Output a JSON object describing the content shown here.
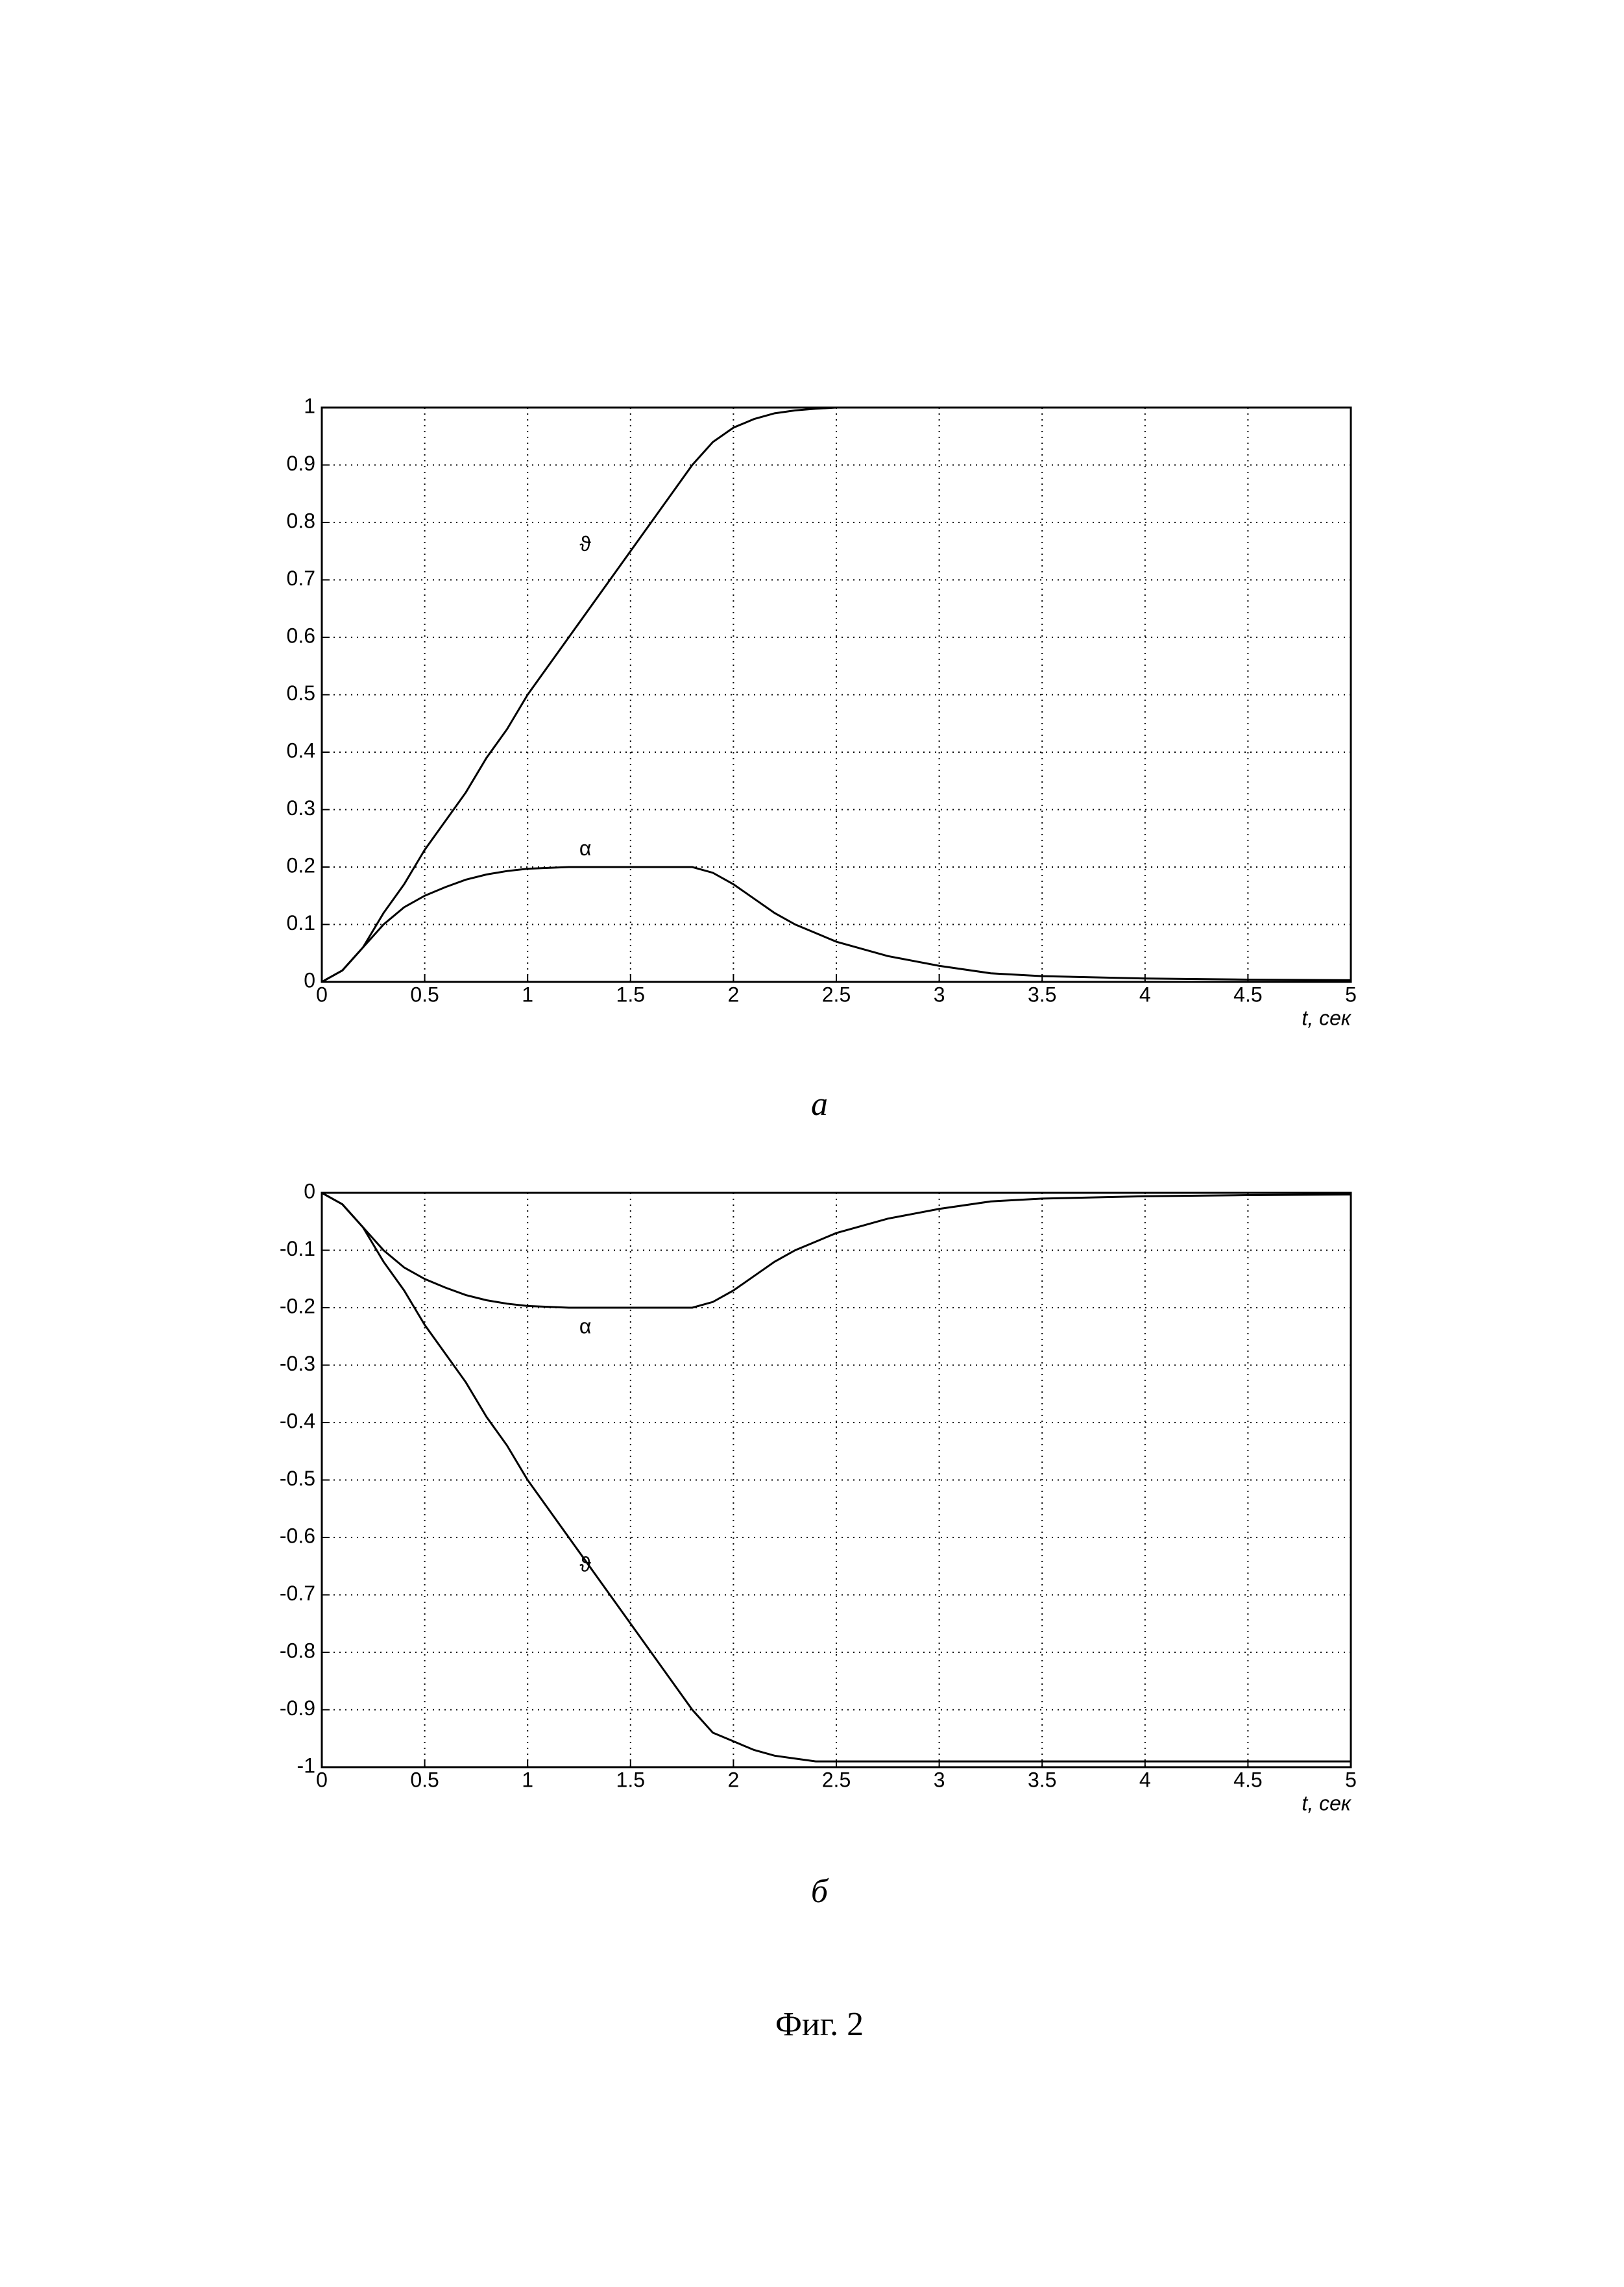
{
  "chart_data": [
    {
      "type": "line",
      "caption": "a",
      "xlabel": "t, сек",
      "xlim": [
        0,
        5
      ],
      "ylim": [
        0,
        1
      ],
      "xticks": [
        0,
        0.5,
        1,
        1.5,
        2,
        2.5,
        3,
        3.5,
        4,
        4.5,
        5
      ],
      "yticks": [
        0,
        0.1,
        0.2,
        0.3,
        0.4,
        0.5,
        0.6,
        0.7,
        0.8,
        0.9,
        1
      ],
      "grid": true,
      "x": [
        0,
        0.1,
        0.2,
        0.3,
        0.4,
        0.5,
        0.6,
        0.7,
        0.8,
        0.9,
        1,
        1.2,
        1.4,
        1.6,
        1.8,
        1.9,
        2,
        2.1,
        2.2,
        2.3,
        2.4,
        2.5,
        2.75,
        3,
        3.25,
        3.5,
        4,
        4.5,
        5
      ],
      "series": [
        {
          "name": "ϑ",
          "color": "#000000",
          "values": [
            0,
            0.02,
            0.06,
            0.12,
            0.17,
            0.23,
            0.28,
            0.33,
            0.39,
            0.44,
            0.5,
            0.6,
            0.7,
            0.8,
            0.9,
            0.94,
            0.965,
            0.98,
            0.99,
            0.995,
            0.998,
            1,
            1,
            1,
            1,
            1,
            1,
            1,
            1
          ]
        },
        {
          "name": "α",
          "color": "#000000",
          "values": [
            0,
            0.02,
            0.06,
            0.1,
            0.13,
            0.15,
            0.165,
            0.178,
            0.187,
            0.193,
            0.197,
            0.2,
            0.2,
            0.2,
            0.2,
            0.19,
            0.17,
            0.145,
            0.12,
            0.1,
            0.085,
            0.07,
            0.045,
            0.028,
            0.015,
            0.01,
            0.006,
            0.004,
            0.003
          ]
        }
      ]
    },
    {
      "type": "line",
      "caption": "б",
      "xlabel": "t, сек",
      "xlim": [
        0,
        5
      ],
      "ylim": [
        -1,
        0
      ],
      "xticks": [
        0,
        0.5,
        1,
        1.5,
        2,
        2.5,
        3,
        3.5,
        4,
        4.5,
        5
      ],
      "yticks": [
        0,
        -0.1,
        -0.2,
        -0.3,
        -0.4,
        -0.5,
        -0.6,
        -0.7,
        -0.8,
        -0.9,
        -1
      ],
      "grid": true,
      "x": [
        0,
        0.1,
        0.2,
        0.3,
        0.4,
        0.5,
        0.6,
        0.7,
        0.8,
        0.9,
        1,
        1.2,
        1.4,
        1.6,
        1.8,
        1.9,
        2,
        2.1,
        2.2,
        2.3,
        2.4,
        2.5,
        2.75,
        3,
        3.25,
        3.5,
        4,
        4.5,
        5
      ],
      "series": [
        {
          "name": "α",
          "color": "#000000",
          "values": [
            0,
            -0.02,
            -0.06,
            -0.1,
            -0.13,
            -0.15,
            -0.165,
            -0.178,
            -0.187,
            -0.193,
            -0.197,
            -0.2,
            -0.2,
            -0.2,
            -0.2,
            -0.19,
            -0.17,
            -0.145,
            -0.12,
            -0.1,
            -0.085,
            -0.07,
            -0.045,
            -0.028,
            -0.015,
            -0.01,
            -0.006,
            -0.004,
            -0.003
          ]
        },
        {
          "name": "ϑ",
          "color": "#000000",
          "values": [
            0,
            -0.02,
            -0.06,
            -0.12,
            -0.17,
            -0.23,
            -0.28,
            -0.33,
            -0.39,
            -0.44,
            -0.5,
            -0.6,
            -0.7,
            -0.8,
            -0.9,
            -0.94,
            -0.955,
            -0.97,
            -0.98,
            -0.985,
            -0.99,
            -0.99,
            -0.99,
            -0.99,
            -0.99,
            -0.99,
            -0.99,
            -0.99,
            -0.99
          ]
        }
      ]
    }
  ],
  "figure_caption": "Фиг. 2"
}
